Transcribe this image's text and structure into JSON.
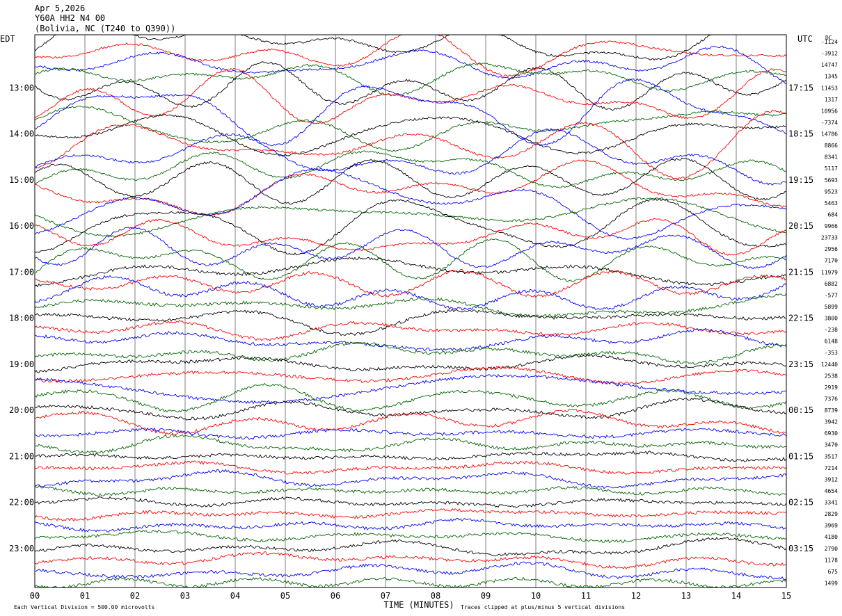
{
  "header": {
    "date": "Apr 5,2026",
    "station": "Y60A HH2 N4 00",
    "location": "(Bolivia, NC (T240 to Q390))"
  },
  "left_axis_label": "EDT",
  "right_axis_label": "UTC",
  "dc_label": "DC",
  "left_hours": [
    "13:00",
    "14:00",
    "15:00",
    "16:00",
    "17:00",
    "18:00",
    "19:00",
    "20:00",
    "21:00",
    "22:00",
    "23:00"
  ],
  "right_hours": [
    "17:15",
    "18:15",
    "19:15",
    "20:15",
    "21:15",
    "22:15",
    "23:15",
    "00:15",
    "01:15",
    "02:15",
    "03:15"
  ],
  "dc_offsets": [
    "-1124",
    "-3912",
    "14747",
    "1345",
    "11453",
    "1317",
    "10956",
    "-7374",
    "14786",
    "8866",
    "8341",
    "5117",
    "5693",
    "9523",
    "5463",
    "684",
    "9966",
    "23733",
    "2956",
    "7170",
    "11979",
    "6882",
    "-577",
    "5899",
    "3800",
    "-238",
    "6148",
    "-353",
    "12440",
    "2538",
    "2919",
    "7376",
    "8739",
    "3942",
    "6930",
    "3470",
    "3517",
    "7214",
    "3912",
    "4654",
    "3341",
    "2829",
    "3969",
    "4180",
    "2790",
    "1178",
    "675",
    "1499"
  ],
  "x_ticks": [
    "00",
    "01",
    "02",
    "03",
    "04",
    "05",
    "06",
    "07",
    "08",
    "09",
    "10",
    "11",
    "12",
    "13",
    "14",
    "15"
  ],
  "x_axis_title": "TIME (MINUTES)",
  "footer_left": "Each Vertical Division =  500.00 microvolts",
  "footer_right": "Traces clipped at plus/minus 5 vertical divisions",
  "colors": {
    "trace_cycle": [
      "#000000",
      "#ff0000",
      "#0000ff",
      "#006400"
    ],
    "grid": "#808080"
  },
  "chart_data": {
    "type": "line",
    "subtype": "helicorder",
    "x_range": [
      0,
      15
    ],
    "x_unit": "minutes",
    "traces_count": 48,
    "minutes_per_trace": 15,
    "vertical_division_microvolts": 500,
    "clip_divisions": 5,
    "grid": true
  }
}
